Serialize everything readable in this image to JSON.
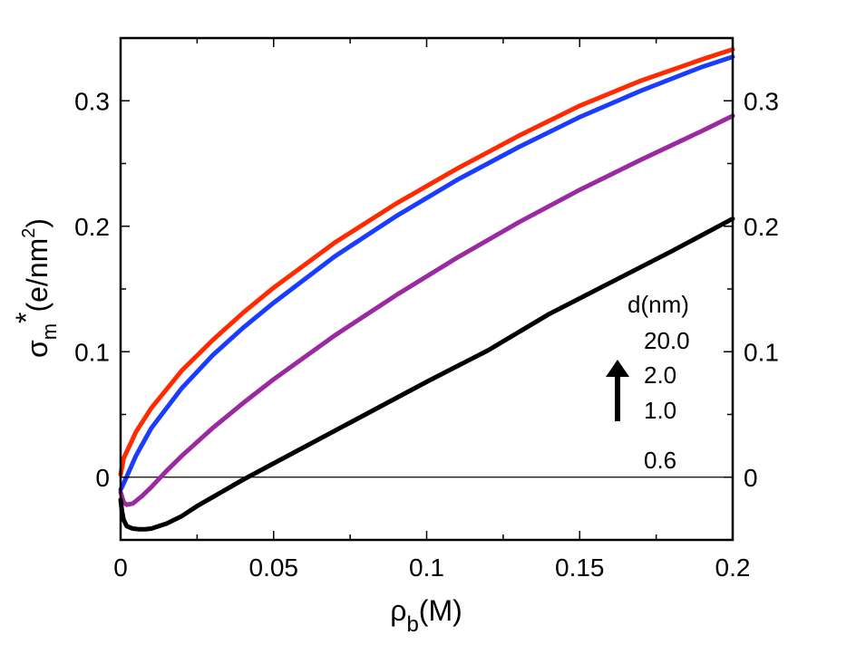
{
  "chart_data": {
    "type": "line",
    "title": "",
    "xlabel": {
      "base": "ρ",
      "sub": "b",
      "unit": "(M)"
    },
    "ylabel": {
      "base": "σ",
      "sub": "m",
      "star": "*",
      "unit_open": "(e/nm",
      "unit_sup": "2",
      "unit_close": ")"
    },
    "xlim": [
      0,
      0.2
    ],
    "ylim": [
      -0.05,
      0.35
    ],
    "x_ticks": [
      0,
      0.05,
      0.1,
      0.15,
      0.2
    ],
    "x_tick_labels": [
      "0",
      "0.05",
      "0.1",
      "0.15",
      "0.2"
    ],
    "y_ticks": [
      0,
      0.1,
      0.2,
      0.3
    ],
    "y_tick_labels": [
      "0",
      "0.1",
      "0.2",
      "0.3"
    ],
    "reference_line_y": 0,
    "legend": {
      "title": "d(nm)",
      "entries": [
        "20.0",
        "2.0",
        "1.0",
        "0.6"
      ],
      "arrow": "increasing d",
      "placement": "right"
    },
    "series": [
      {
        "name": "20.0",
        "color": "#ff2a00",
        "x": [
          0,
          0.001,
          0.005,
          0.01,
          0.02,
          0.03,
          0.04,
          0.05,
          0.07,
          0.09,
          0.11,
          0.13,
          0.15,
          0.17,
          0.19,
          0.2
        ],
        "y": [
          0.002,
          0.015,
          0.036,
          0.055,
          0.085,
          0.109,
          0.131,
          0.151,
          0.187,
          0.218,
          0.246,
          0.272,
          0.296,
          0.316,
          0.333,
          0.341
        ]
      },
      {
        "name": "2.0",
        "color": "#1a3cff",
        "x": [
          0,
          0.001,
          0.003,
          0.005,
          0.01,
          0.02,
          0.03,
          0.04,
          0.05,
          0.07,
          0.09,
          0.11,
          0.13,
          0.15,
          0.17,
          0.19,
          0.2
        ],
        "y": [
          -0.01,
          -0.005,
          0.006,
          0.017,
          0.039,
          0.071,
          0.097,
          0.119,
          0.139,
          0.176,
          0.208,
          0.237,
          0.263,
          0.287,
          0.308,
          0.327,
          0.335
        ]
      },
      {
        "name": "1.0",
        "color": "#9a2aa0",
        "x": [
          0,
          0.001,
          0.002,
          0.004,
          0.007,
          0.01,
          0.015,
          0.02,
          0.03,
          0.04,
          0.05,
          0.07,
          0.09,
          0.11,
          0.13,
          0.15,
          0.17,
          0.19,
          0.2
        ],
        "y": [
          -0.012,
          -0.02,
          -0.022,
          -0.021,
          -0.015,
          -0.008,
          0.005,
          0.017,
          0.039,
          0.059,
          0.078,
          0.113,
          0.145,
          0.175,
          0.203,
          0.229,
          0.253,
          0.276,
          0.288
        ]
      },
      {
        "name": "0.6",
        "color": "#000000",
        "x": [
          0,
          0.0005,
          0.001,
          0.002,
          0.004,
          0.006,
          0.008,
          0.01,
          0.015,
          0.02,
          0.025,
          0.03,
          0.04,
          0.05,
          0.06,
          0.08,
          0.1,
          0.12,
          0.14,
          0.16,
          0.18,
          0.2
        ],
        "y": [
          -0.018,
          -0.028,
          -0.034,
          -0.039,
          -0.041,
          -0.0415,
          -0.0415,
          -0.041,
          -0.037,
          -0.031,
          -0.023,
          -0.016,
          -0.002,
          0.011,
          0.024,
          0.05,
          0.076,
          0.101,
          0.13,
          0.155,
          0.18,
          0.206
        ]
      }
    ]
  }
}
